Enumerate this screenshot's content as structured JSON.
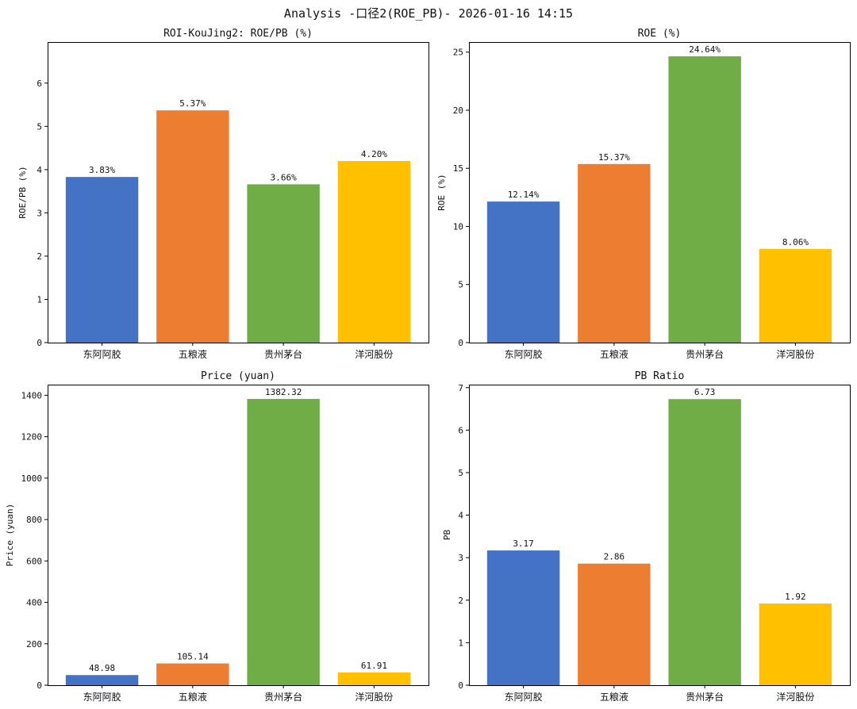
{
  "figure_title": "Analysis -口径2(ROE_PB)- 2026-01-16 14:15",
  "colors": [
    "#4472C4",
    "#ED7D31",
    "#70AD47",
    "#FFC000"
  ],
  "chart_data": [
    {
      "type": "bar",
      "title": "ROI-KouJing2: ROE/PB (%)",
      "xlabel": "",
      "ylabel": "ROE/PB (%)",
      "categories": [
        "东阿阿胶",
        "五粮液",
        "贵州茅台",
        "洋河股份"
      ],
      "values": [
        3.83,
        5.37,
        3.66,
        4.2
      ],
      "value_labels": [
        "3.83%",
        "5.37%",
        "3.66%",
        "4.20%"
      ],
      "ylim": [
        0,
        6.95
      ],
      "yticks": [
        0,
        1,
        2,
        3,
        4,
        5,
        6
      ],
      "ytick_labels": [
        "0",
        "1",
        "2",
        "3",
        "4",
        "5",
        "6"
      ]
    },
    {
      "type": "bar",
      "title": "ROE (%)",
      "xlabel": "",
      "ylabel": "ROE (%)",
      "categories": [
        "东阿阿胶",
        "五粮液",
        "贵州茅台",
        "洋河股份"
      ],
      "values": [
        12.14,
        15.37,
        24.64,
        8.06
      ],
      "value_labels": [
        "12.14%",
        "15.37%",
        "24.64%",
        "8.06%"
      ],
      "ylim": [
        0,
        25.87
      ],
      "yticks": [
        0,
        5,
        10,
        15,
        20,
        25
      ],
      "ytick_labels": [
        "0",
        "5",
        "10",
        "15",
        "20",
        "25"
      ]
    },
    {
      "type": "bar",
      "title": "Price (yuan)",
      "xlabel": "",
      "ylabel": "Price (yuan)",
      "categories": [
        "东阿阿胶",
        "五粮液",
        "贵州茅台",
        "洋河股份"
      ],
      "values": [
        48.98,
        105.14,
        1382.32,
        61.91
      ],
      "value_labels": [
        "48.98",
        "105.14",
        "1382.32",
        "61.91"
      ],
      "ylim": [
        0,
        1451.4
      ],
      "yticks": [
        0,
        200,
        400,
        600,
        800,
        1000,
        1200,
        1400
      ],
      "ytick_labels": [
        "0",
        "200",
        "400",
        "600",
        "800",
        "1000",
        "1200",
        "1400"
      ]
    },
    {
      "type": "bar",
      "title": "PB Ratio",
      "xlabel": "",
      "ylabel": "PB",
      "categories": [
        "东阿阿胶",
        "五粮液",
        "贵州茅台",
        "洋河股份"
      ],
      "values": [
        3.17,
        2.86,
        6.73,
        1.92
      ],
      "value_labels": [
        "3.17",
        "2.86",
        "6.73",
        "1.92"
      ],
      "ylim": [
        0,
        7.07
      ],
      "yticks": [
        0,
        1,
        2,
        3,
        4,
        5,
        6,
        7
      ],
      "ytick_labels": [
        "0",
        "1",
        "2",
        "3",
        "4",
        "5",
        "6",
        "7"
      ]
    }
  ]
}
